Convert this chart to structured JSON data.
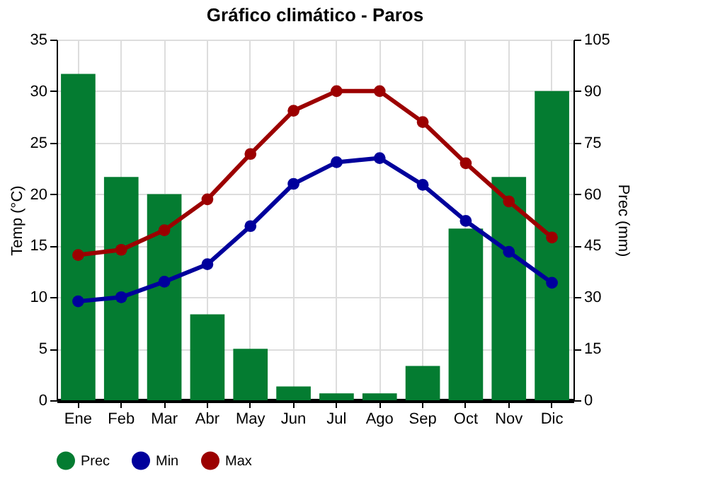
{
  "chart_data": {
    "type": "bar",
    "title": "Gráfico climático - Paros",
    "ylabel": "Temp (°C)",
    "y2label": "Prec (mm)",
    "categories": [
      "Ene",
      "Feb",
      "Mar",
      "Abr",
      "May",
      "Jun",
      "Jul",
      "Ago",
      "Sep",
      "Oct",
      "Nov",
      "Dic"
    ],
    "series": [
      {
        "name": "Prec",
        "axis": "y2",
        "color": "#047c31",
        "values": [
          95,
          65,
          60,
          25,
          15,
          4,
          2,
          2,
          10,
          50,
          65,
          90
        ]
      },
      {
        "name": "Min",
        "type": "line",
        "color": "#00009c",
        "values": [
          9.6,
          10,
          11.5,
          13.2,
          16.9,
          21,
          23.1,
          23.5,
          20.9,
          17.4,
          14.4,
          11.4
        ]
      },
      {
        "name": "Max",
        "type": "line",
        "color": "#9c0000",
        "values": [
          14.1,
          14.6,
          16.5,
          19.5,
          23.9,
          28.1,
          30,
          30,
          27,
          23,
          19.3,
          15.8
        ]
      }
    ],
    "ylim": [
      0,
      35
    ],
    "yticks": [
      0,
      5,
      10,
      15,
      20,
      25,
      30,
      35
    ],
    "y2lim": [
      0,
      105
    ],
    "y2ticks": [
      0,
      15,
      30,
      45,
      60,
      75,
      90,
      105
    ],
    "grid": true,
    "legend": "bottom",
    "marker": "circle",
    "line_style": "solid"
  }
}
